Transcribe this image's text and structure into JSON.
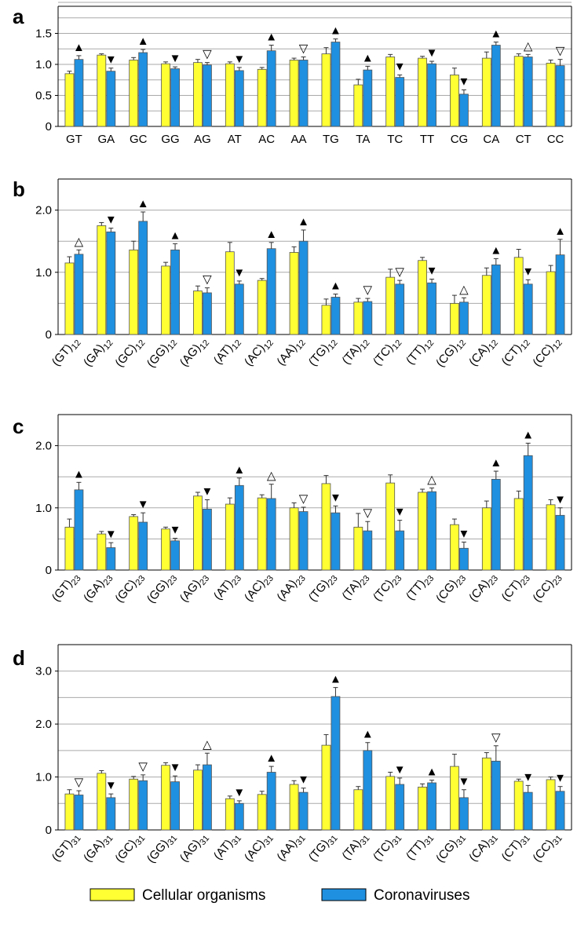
{
  "colors": {
    "cellular": "#ffff33",
    "corona": "#1f8fe0",
    "grid": "#aaaaaa",
    "axis": "#000000"
  },
  "legend": {
    "cellular_label": "Cellular organisms",
    "corona_label": "Coronaviruses"
  },
  "chart_data": [
    {
      "type": "bar",
      "panel": "a",
      "categories": [
        "GT",
        "GA",
        "GC",
        "GG",
        "AG",
        "AT",
        "AC",
        "AA",
        "TG",
        "TA",
        "TC",
        "TT",
        "CG",
        "CA",
        "CT",
        "CC"
      ],
      "subscript": "",
      "yticks": [
        "0",
        "0.5",
        "1.0",
        "1.5"
      ],
      "ylim": [
        0,
        2.0
      ],
      "series": [
        {
          "name": "Cellular organisms",
          "values": [
            0.85,
            1.15,
            1.07,
            1.01,
            1.03,
            1.01,
            0.92,
            1.07,
            1.17,
            0.67,
            1.12,
            1.1,
            0.83,
            1.1,
            1.13,
            1.02
          ],
          "errors": [
            0.04,
            0.02,
            0.04,
            0.03,
            0.05,
            0.03,
            0.03,
            0.03,
            0.1,
            0.09,
            0.04,
            0.03,
            0.11,
            0.1,
            0.04,
            0.05
          ]
        },
        {
          "name": "Coronaviruses",
          "values": [
            1.08,
            0.89,
            1.19,
            0.93,
            0.99,
            0.9,
            1.22,
            1.07,
            1.36,
            0.91,
            0.79,
            1.01,
            0.52,
            1.31,
            1.12,
            0.98
          ],
          "errors": [
            0.06,
            0.05,
            0.05,
            0.03,
            0.04,
            0.05,
            0.09,
            0.05,
            0.05,
            0.06,
            0.04,
            0.04,
            0.07,
            0.05,
            0.04,
            0.1
          ]
        }
      ],
      "markers": [
        "▲",
        "▼",
        "▲",
        "▼",
        "▽",
        "▼",
        "▲",
        "▽",
        "▲",
        "▲",
        "▼",
        "▼",
        "▼",
        "▲",
        "△",
        "▽"
      ]
    },
    {
      "type": "bar",
      "panel": "b",
      "categories": [
        "GT",
        "GA",
        "GC",
        "GG",
        "AG",
        "AT",
        "AC",
        "AA",
        "TG",
        "TA",
        "TC",
        "TT",
        "CG",
        "CA",
        "CT",
        "CC"
      ],
      "subscript": "12",
      "yticks": [
        "0",
        "1.0",
        "2.0"
      ],
      "ylim": [
        0,
        2.5
      ],
      "series": [
        {
          "name": "Cellular organisms",
          "values": [
            1.15,
            1.75,
            1.36,
            1.1,
            0.7,
            1.33,
            0.87,
            1.32,
            0.47,
            0.52,
            0.92,
            1.19,
            0.5,
            0.95,
            1.24,
            1.01
          ],
          "errors": [
            0.1,
            0.05,
            0.14,
            0.06,
            0.08,
            0.15,
            0.03,
            0.09,
            0.1,
            0.06,
            0.13,
            0.05,
            0.13,
            0.12,
            0.13,
            0.1
          ]
        },
        {
          "name": "Coronaviruses",
          "values": [
            1.29,
            1.65,
            1.82,
            1.36,
            0.67,
            0.81,
            1.38,
            1.5,
            0.6,
            0.53,
            0.81,
            0.83,
            0.52,
            1.12,
            0.81,
            1.28
          ],
          "errors": [
            0.07,
            0.06,
            0.15,
            0.1,
            0.08,
            0.05,
            0.1,
            0.18,
            0.05,
            0.05,
            0.06,
            0.06,
            0.07,
            0.1,
            0.07,
            0.25
          ]
        }
      ],
      "markers": [
        "△",
        "▼",
        "▲",
        "▲",
        "▽",
        "▼",
        "▲",
        "▲",
        "▲",
        "▽",
        "▽",
        "▼",
        "△",
        "▲",
        "▼",
        "▲"
      ]
    },
    {
      "type": "bar",
      "panel": "c",
      "categories": [
        "GT",
        "GA",
        "GC",
        "GG",
        "AG",
        "AT",
        "AC",
        "AA",
        "TG",
        "TA",
        "TC",
        "TT",
        "CG",
        "CA",
        "CT",
        "CC"
      ],
      "subscript": "23",
      "yticks": [
        "0",
        "1.0",
        "2.0"
      ],
      "ylim": [
        0,
        2.5
      ],
      "series": [
        {
          "name": "Cellular organisms",
          "values": [
            0.69,
            0.58,
            0.86,
            0.66,
            1.19,
            1.06,
            1.16,
            1.0,
            1.39,
            0.69,
            1.4,
            1.25,
            0.73,
            1.0,
            1.15,
            1.05
          ],
          "errors": [
            0.13,
            0.04,
            0.03,
            0.03,
            0.06,
            0.1,
            0.05,
            0.08,
            0.13,
            0.22,
            0.13,
            0.05,
            0.09,
            0.11,
            0.12,
            0.08
          ]
        },
        {
          "name": "Coronaviruses",
          "values": [
            1.29,
            0.36,
            0.77,
            0.47,
            0.98,
            1.36,
            1.15,
            0.94,
            0.92,
            0.63,
            0.63,
            1.26,
            0.35,
            1.46,
            1.84,
            0.88
          ],
          "errors": [
            0.12,
            0.08,
            0.15,
            0.04,
            0.15,
            0.12,
            0.23,
            0.07,
            0.11,
            0.15,
            0.17,
            0.06,
            0.1,
            0.13,
            0.2,
            0.12
          ]
        }
      ],
      "markers": [
        "▲",
        "▼",
        "▼",
        "▼",
        "▼",
        "▲",
        "△",
        "▽",
        "▼",
        "▽",
        "▼",
        "△",
        "▼",
        "▲",
        "▲",
        "▼"
      ]
    },
    {
      "type": "bar",
      "panel": "d",
      "categories": [
        "GT",
        "GA",
        "GC",
        "GG",
        "AG",
        "AT",
        "AC",
        "AA",
        "TG",
        "TA",
        "TC",
        "TT",
        "CG",
        "CA",
        "CT",
        "CC"
      ],
      "subscript": "31",
      "yticks": [
        "0",
        "1.0",
        "2.0",
        "3.0"
      ],
      "ylim": [
        0,
        3.5
      ],
      "series": [
        {
          "name": "Cellular organisms",
          "values": [
            0.68,
            1.07,
            0.96,
            1.22,
            1.13,
            0.59,
            0.67,
            0.86,
            1.6,
            0.76,
            1.01,
            0.81,
            1.2,
            1.36,
            0.92,
            0.95
          ],
          "errors": [
            0.08,
            0.05,
            0.05,
            0.05,
            0.1,
            0.05,
            0.06,
            0.07,
            0.2,
            0.06,
            0.08,
            0.06,
            0.23,
            0.1,
            0.04,
            0.05
          ]
        },
        {
          "name": "Coronaviruses",
          "values": [
            0.66,
            0.61,
            0.93,
            0.91,
            1.23,
            0.5,
            1.09,
            0.71,
            2.52,
            1.5,
            0.86,
            0.89,
            0.61,
            1.3,
            0.71,
            0.73
          ],
          "errors": [
            0.08,
            0.07,
            0.11,
            0.11,
            0.22,
            0.05,
            0.11,
            0.08,
            0.17,
            0.15,
            0.12,
            0.05,
            0.15,
            0.29,
            0.13,
            0.09
          ]
        }
      ],
      "markers": [
        "▽",
        "▼",
        "▽",
        "▼",
        "△",
        "▼",
        "▲",
        "▼",
        "▲",
        "▲",
        "▼",
        "▲",
        "▼",
        "▽",
        "▼",
        "▼"
      ]
    }
  ]
}
